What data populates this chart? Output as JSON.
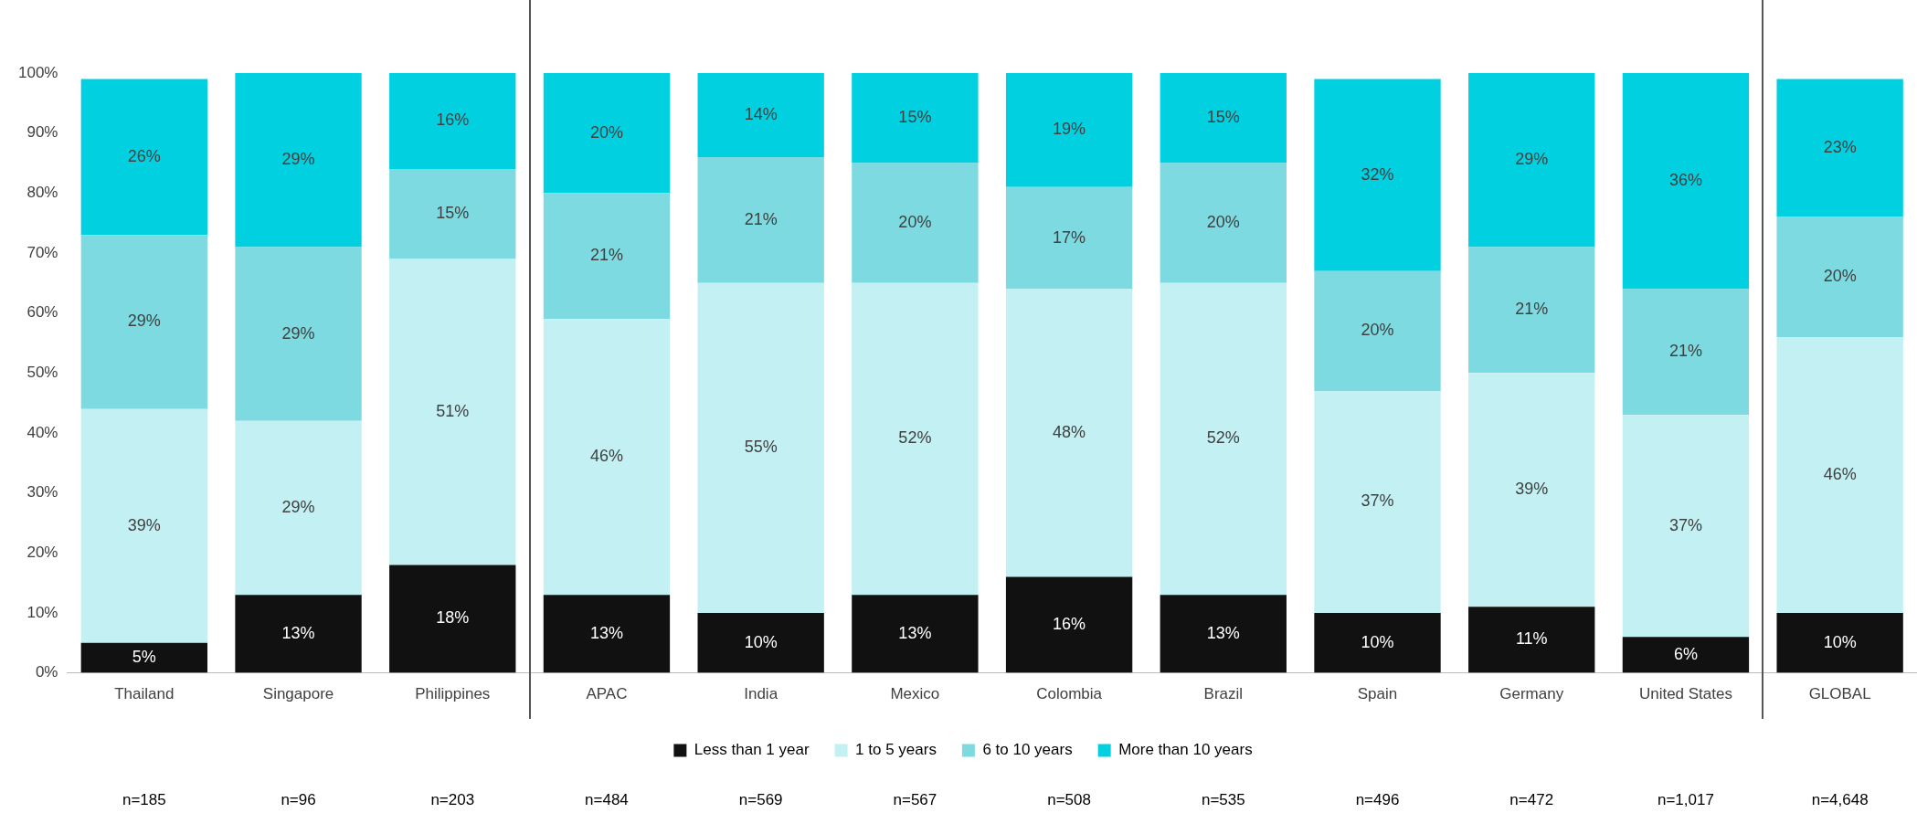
{
  "chart_data": {
    "type": "bar",
    "stacked": true,
    "grid": false,
    "legend": "bottom",
    "categories": [
      "Thailand",
      "Singapore",
      "Philippines",
      "APAC",
      "India",
      "Mexico",
      "Colombia",
      "Brazil",
      "Spain",
      "Germany",
      "United States",
      "GLOBAL"
    ],
    "series": [
      {
        "name": "Less than 1 year",
        "color": "#111111",
        "values": [
          5,
          13,
          18,
          13,
          10,
          13,
          16,
          13,
          10,
          11,
          6,
          10
        ],
        "value_labels": [
          "5%",
          "13%",
          "18%",
          "13%",
          "10%",
          "13%",
          "16%",
          "13%",
          "10%",
          "11%",
          "6%",
          "10%"
        ]
      },
      {
        "name": "1 to 5 years",
        "color": "#c3f0f3",
        "values": [
          39,
          29,
          51,
          46,
          55,
          52,
          48,
          52,
          37,
          39,
          37,
          46
        ],
        "value_labels": [
          "39%",
          "29%",
          "51%",
          "46%",
          "55%",
          "52%",
          "48%",
          "52%",
          "37%",
          "39%",
          "37%",
          "46%"
        ]
      },
      {
        "name": "6 to 10 years",
        "color": "#7ddae0",
        "values": [
          29,
          29,
          15,
          21,
          21,
          20,
          17,
          20,
          20,
          21,
          21,
          20
        ],
        "value_labels": [
          "29%",
          "29%",
          "15%",
          "21%",
          "21%",
          "20%",
          "17%",
          "20%",
          "20%",
          "21%",
          "21%",
          "20%"
        ]
      },
      {
        "name": "More than 10 years",
        "color": "#00d0e0",
        "values": [
          26,
          29,
          16,
          20,
          14,
          15,
          19,
          15,
          32,
          29,
          36,
          23
        ],
        "value_labels": [
          "26%",
          "29%",
          "16%",
          "20%",
          "14%",
          "15%",
          "19%",
          "15%",
          "32%",
          "29%",
          "36%",
          "23%"
        ]
      }
    ],
    "ylim": [
      0,
      100
    ],
    "yticks": [
      {
        "value": 0,
        "label": "0%"
      },
      {
        "value": 10,
        "label": "10%"
      },
      {
        "value": 20,
        "label": "20%"
      },
      {
        "value": 30,
        "label": "30%"
      },
      {
        "value": 40,
        "label": "40%"
      },
      {
        "value": 50,
        "label": "50%"
      },
      {
        "value": 60,
        "label": "60%"
      },
      {
        "value": 70,
        "label": "70%"
      },
      {
        "value": 80,
        "label": "80%"
      },
      {
        "value": 90,
        "label": "90%"
      },
      {
        "value": 100,
        "label": "100%"
      }
    ],
    "annotations": [
      "n=185",
      "n=96",
      "n=203",
      "n=484",
      "n=569",
      "n=567",
      "n=508",
      "n=535",
      "n=496",
      "n=472",
      "n=1,017",
      "n=4,648"
    ]
  }
}
